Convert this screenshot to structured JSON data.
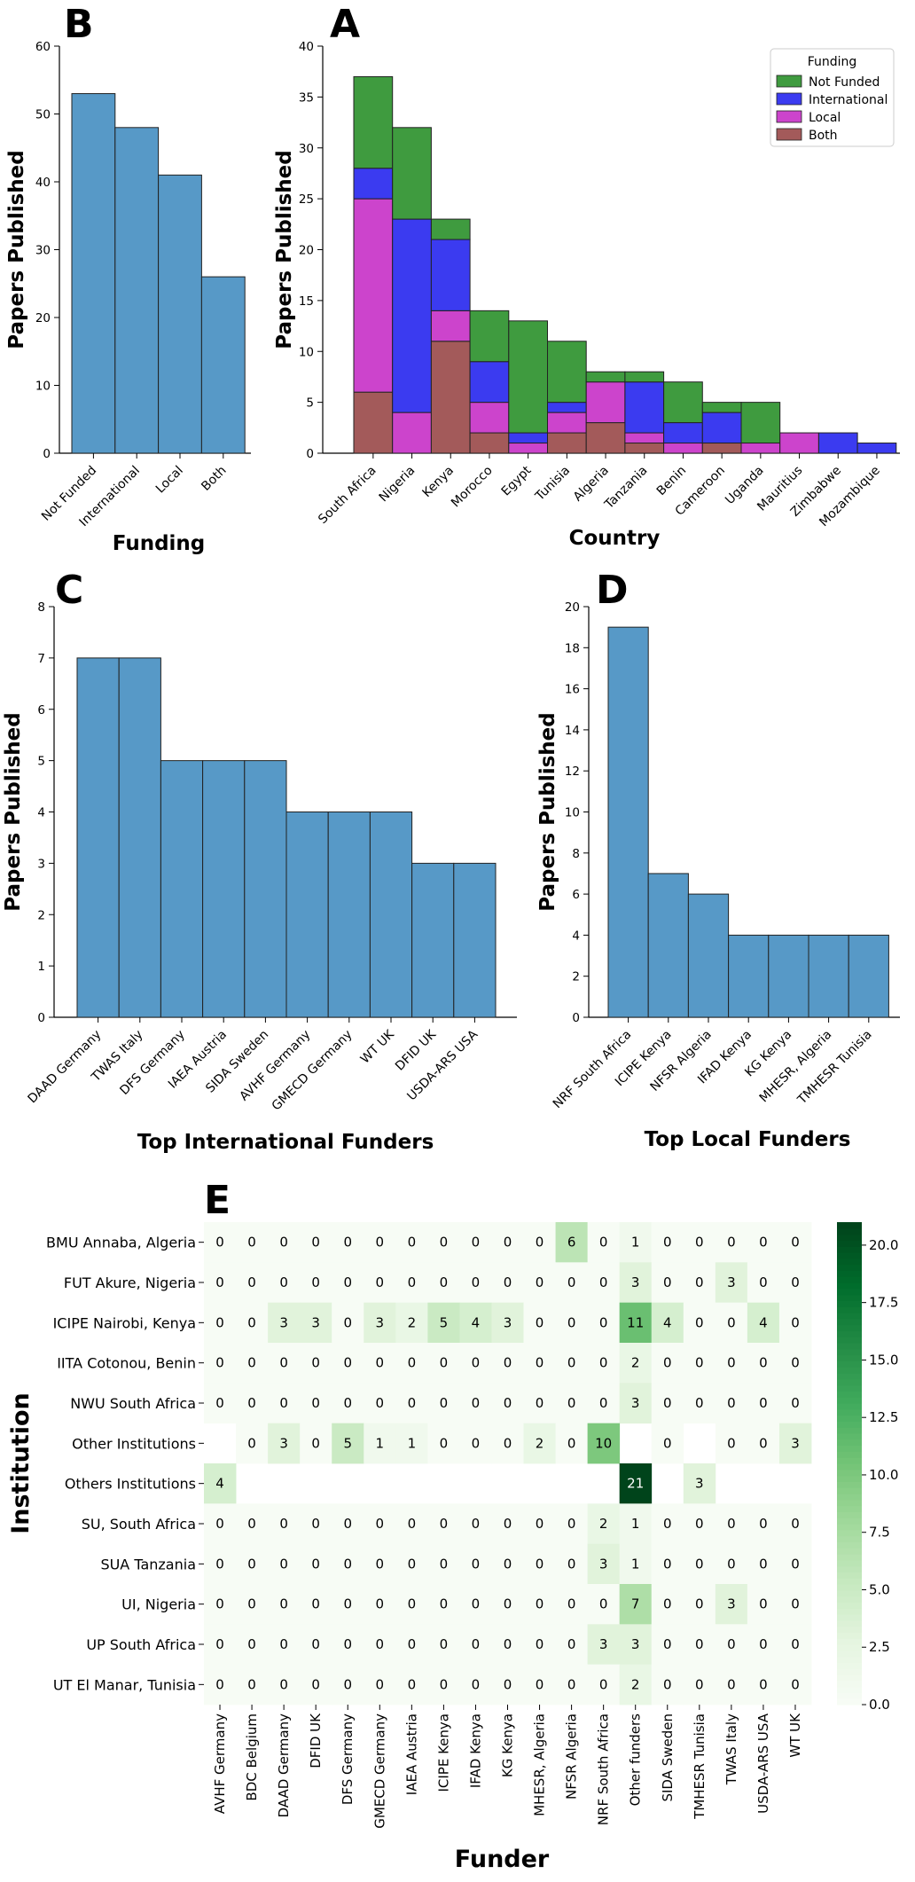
{
  "chart_data": [
    {
      "panel": "B",
      "type": "bar",
      "xlabel": "Funding",
      "ylabel": "Papers Published",
      "ylim": [
        0,
        60
      ],
      "yticks": [
        0,
        10,
        20,
        30,
        40,
        50,
        60
      ],
      "categories": [
        "Not Funded",
        "International",
        "Local",
        "Both"
      ],
      "values": [
        53,
        48,
        41,
        26
      ],
      "color": "#5799c7"
    },
    {
      "panel": "A",
      "type": "bar",
      "stacked": true,
      "xlabel": "Country",
      "ylabel": "Papers Published",
      "ylim": [
        0,
        40
      ],
      "yticks": [
        0,
        5,
        10,
        15,
        20,
        25,
        30,
        35,
        40
      ],
      "categories": [
        "South Africa",
        "Nigeria",
        "Kenya",
        "Morocco",
        "Egypt",
        "Tunisia",
        "Algeria",
        "Tanzania",
        "Benin",
        "Cameroon",
        "Uganda",
        "Mauritius",
        "Zimbabwe",
        "Mozambique"
      ],
      "legend_title": "Funding",
      "legend_position": "top-right",
      "series": [
        {
          "name": "Both",
          "color": "#a35a5a",
          "values": [
            6,
            0,
            11,
            2,
            0,
            2,
            3,
            1,
            0,
            1,
            0,
            0,
            0,
            0
          ]
        },
        {
          "name": "Local",
          "color": "#cc44cc",
          "values": [
            19,
            4,
            3,
            3,
            1,
            2,
            4,
            1,
            1,
            0,
            1,
            2,
            0,
            0
          ]
        },
        {
          "name": "International",
          "color": "#3b3bf0",
          "values": [
            3,
            19,
            7,
            4,
            1,
            1,
            0,
            5,
            2,
            3,
            0,
            0,
            2,
            1
          ]
        },
        {
          "name": "Not Funded",
          "color": "#3f9b3f",
          "values": [
            9,
            9,
            2,
            5,
            11,
            6,
            1,
            1,
            4,
            1,
            4,
            0,
            0,
            0
          ]
        }
      ]
    },
    {
      "panel": "C",
      "type": "bar",
      "xlabel": "Top International Funders",
      "ylabel": "Papers Published",
      "ylim": [
        0,
        8
      ],
      "yticks": [
        0,
        1,
        2,
        3,
        4,
        5,
        6,
        7,
        8
      ],
      "categories": [
        "DAAD Germany",
        "TWAS Italy",
        "DFS Germany",
        "IAEA Austria",
        "SIDA Sweden",
        "AVHF Germany",
        "GMECD Germany",
        "WT UK",
        "DFID UK",
        "USDA-ARS USA"
      ],
      "values": [
        7,
        7,
        5,
        5,
        5,
        4,
        4,
        4,
        3,
        3
      ],
      "color": "#5799c7"
    },
    {
      "panel": "D",
      "type": "bar",
      "xlabel": "Top Local Funders",
      "ylabel": "Papers Published",
      "ylim": [
        0,
        20
      ],
      "yticks": [
        0,
        2,
        4,
        6,
        8,
        10,
        12,
        14,
        16,
        18,
        20
      ],
      "categories": [
        "NRF South Africa",
        "ICIPE Kenya",
        "NFSR Algeria",
        "IFAD Kenya",
        "KG Kenya",
        "MHESR, Algeria",
        "TMHESR Tunisia"
      ],
      "values": [
        19,
        7,
        6,
        4,
        4,
        4,
        4
      ],
      "color": "#5799c7"
    },
    {
      "panel": "E",
      "type": "heatmap",
      "xlabel": "Funder",
      "ylabel": "Institution",
      "colorbar_range": [
        0,
        21
      ],
      "colorbar_ticks": [
        "0.0",
        "2.5",
        "5.0",
        "7.5",
        "10.0",
        "12.5",
        "15.0",
        "17.5",
        "20.0"
      ],
      "colormap": "Greens",
      "rows": [
        "BMU Annaba, Algeria",
        "FUT Akure, Nigeria",
        "ICIPE Nairobi, Kenya",
        "IITA Cotonou, Benin",
        "NWU South Africa",
        "Other Institutions",
        "Others Institutions",
        "SU, South Africa",
        "SUA Tanzania",
        "UI, Nigeria",
        "UP South Africa",
        "UT El Manar, Tunisia"
      ],
      "columns": [
        "AVHF Germany",
        "BDC Belgium",
        "DAAD Germany",
        "DFID UK",
        "DFS Germany",
        "GMECD Germany",
        "IAEA Austria",
        "ICIPE Kenya",
        "IFAD Kenya",
        "KG Kenya",
        "MHESR, Algeria",
        "NFSR Algeria",
        "NRF South Africa",
        "Other funders",
        "SIDA Sweden",
        "TMHESR Tunisia",
        "TWAS Italy",
        "USDA-ARS USA",
        "WT UK"
      ],
      "values": [
        [
          0,
          0,
          0,
          0,
          0,
          0,
          0,
          0,
          0,
          0,
          0,
          6,
          0,
          1,
          0,
          0,
          0,
          0,
          0
        ],
        [
          0,
          0,
          0,
          0,
          0,
          0,
          0,
          0,
          0,
          0,
          0,
          0,
          0,
          3,
          0,
          0,
          3,
          0,
          0
        ],
        [
          0,
          0,
          3,
          3,
          0,
          3,
          2,
          5,
          4,
          3,
          0,
          0,
          0,
          11,
          4,
          0,
          0,
          4,
          0
        ],
        [
          0,
          0,
          0,
          0,
          0,
          0,
          0,
          0,
          0,
          0,
          0,
          0,
          0,
          2,
          0,
          0,
          0,
          0,
          0
        ],
        [
          0,
          0,
          0,
          0,
          0,
          0,
          0,
          0,
          0,
          0,
          0,
          0,
          0,
          3,
          0,
          0,
          0,
          0,
          0
        ],
        [
          null,
          0,
          3,
          0,
          5,
          1,
          1,
          0,
          0,
          0,
          2,
          0,
          10,
          null,
          0,
          null,
          0,
          0,
          3
        ],
        [
          4,
          null,
          null,
          null,
          null,
          null,
          null,
          null,
          null,
          null,
          null,
          null,
          null,
          21,
          null,
          3,
          null,
          null,
          null
        ],
        [
          0,
          0,
          0,
          0,
          0,
          0,
          0,
          0,
          0,
          0,
          0,
          0,
          2,
          1,
          0,
          0,
          0,
          0,
          0
        ],
        [
          0,
          0,
          0,
          0,
          0,
          0,
          0,
          0,
          0,
          0,
          0,
          0,
          3,
          1,
          0,
          0,
          0,
          0,
          0
        ],
        [
          0,
          0,
          0,
          0,
          0,
          0,
          0,
          0,
          0,
          0,
          0,
          0,
          0,
          7,
          0,
          0,
          3,
          0,
          0
        ],
        [
          0,
          0,
          0,
          0,
          0,
          0,
          0,
          0,
          0,
          0,
          0,
          0,
          3,
          3,
          0,
          0,
          0,
          0,
          0
        ],
        [
          0,
          0,
          0,
          0,
          0,
          0,
          0,
          0,
          0,
          0,
          0,
          0,
          0,
          2,
          0,
          0,
          0,
          0,
          0
        ]
      ]
    }
  ]
}
